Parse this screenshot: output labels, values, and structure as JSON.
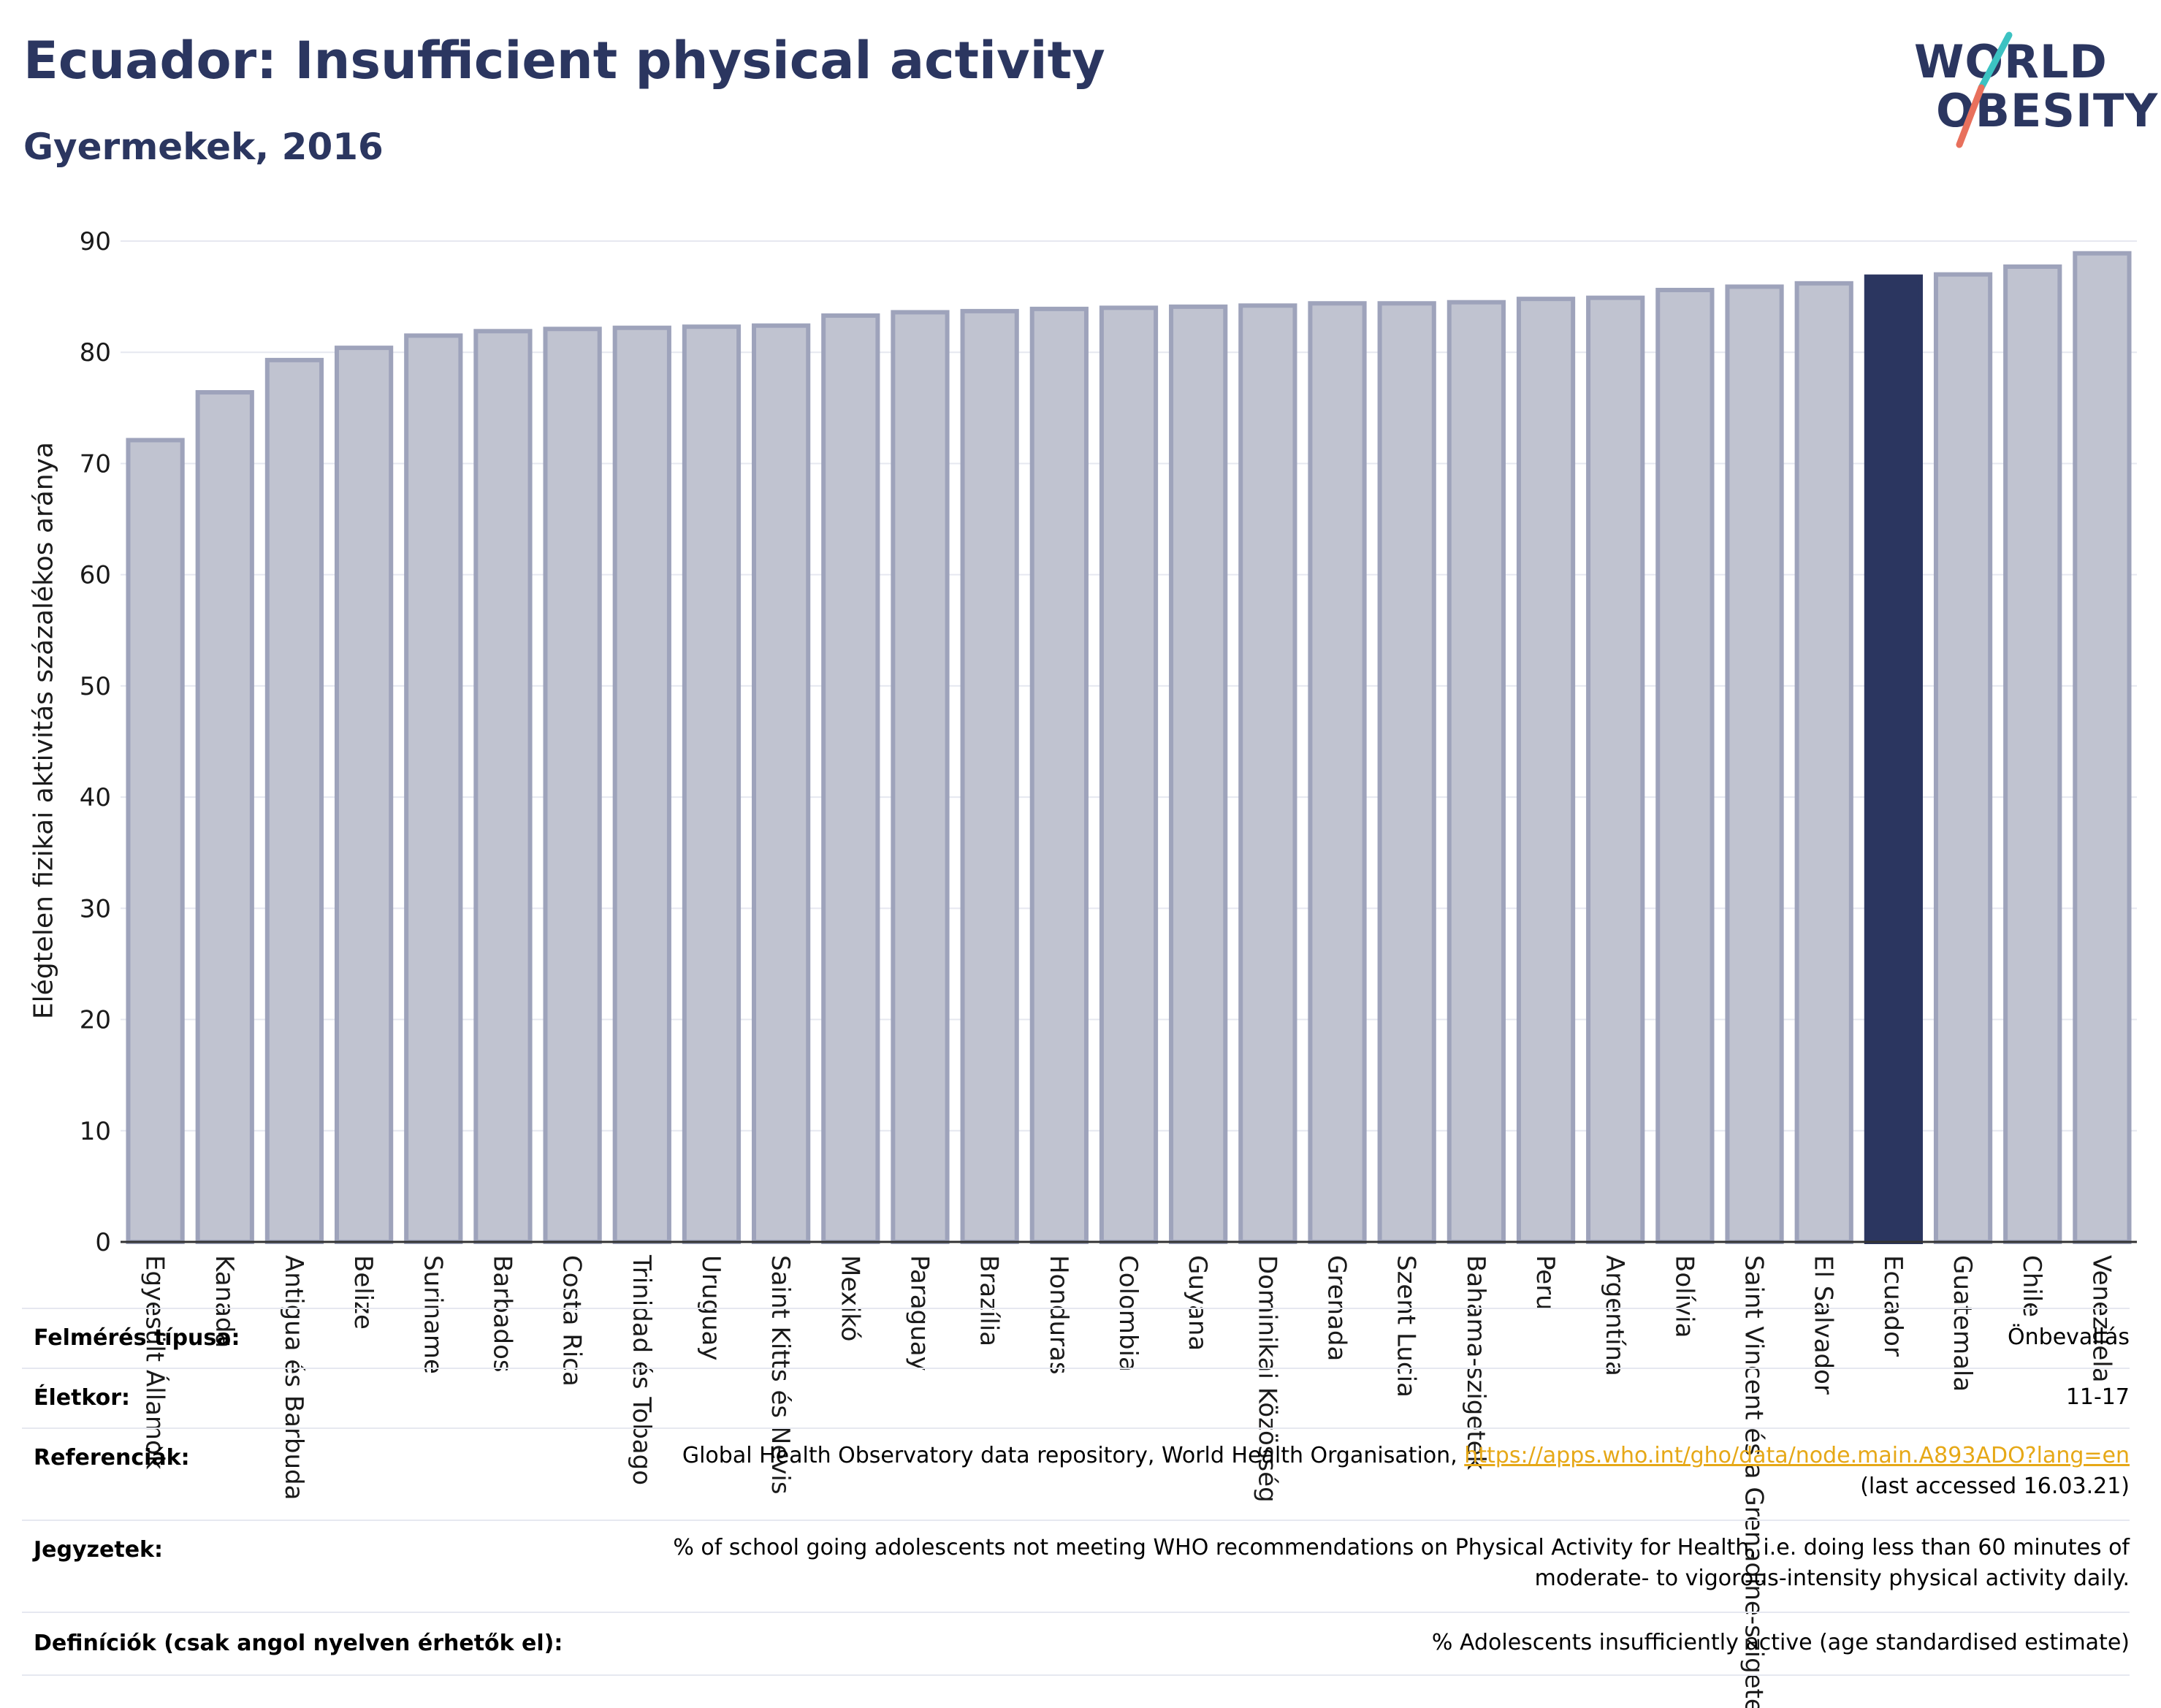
{
  "header": {
    "title": "Ecuador: Insufficient physical activity",
    "subtitle": "Gyermekek, 2016"
  },
  "logo": {
    "line1": "WORLD",
    "line2": "OBESITY",
    "accent_teal": "#3cc2c2",
    "accent_coral": "#e8705c"
  },
  "colors": {
    "bar": "#c0c3d0",
    "bar_edge": "#9ea3bb",
    "highlight": "#2b3660",
    "grid": "#e6e8f0"
  },
  "chart_data": {
    "type": "bar",
    "title": "Ecuador: Insufficient physical activity",
    "subtitle": "Gyermekek, 2016",
    "ylabel": "Elégtelen fizikai aktivitás százalékos aránya",
    "xlabel": "",
    "ylim": [
      0,
      90
    ],
    "yticks": [
      0,
      10,
      20,
      30,
      40,
      50,
      60,
      70,
      80,
      90
    ],
    "grid": true,
    "highlight": "Ecuador",
    "categories": [
      "Egyesült Államok",
      "Kanada",
      "Antigua és Barbuda",
      "Belize",
      "Suriname",
      "Barbados",
      "Costa Rica",
      "Trinidad és Tobago",
      "Uruguay",
      "Saint Kitts és Nevis",
      "Mexikó",
      "Paraguay",
      "Brazília",
      "Honduras",
      "Colombia",
      "Guyana",
      "Dominikai Közösség",
      "Grenada",
      "Szent Lucia",
      "Bahama-szigetek",
      "Peru",
      "Argentína",
      "Bolívia",
      "Saint Vincent és a Grenadine-szigetek",
      "El Salvador",
      "Ecuador",
      "Guatemala",
      "Chile",
      "Venezuela"
    ],
    "values": [
      72.1,
      76.4,
      79.3,
      80.4,
      81.5,
      81.9,
      82.1,
      82.2,
      82.3,
      82.4,
      83.3,
      83.6,
      83.7,
      83.9,
      84.0,
      84.1,
      84.2,
      84.4,
      84.4,
      84.5,
      84.8,
      84.9,
      85.6,
      85.9,
      86.2,
      86.8,
      87.0,
      87.7,
      88.9
    ]
  },
  "meta": [
    {
      "label": "Felmérés típusa:",
      "value": "Önbevallás"
    },
    {
      "label": "Életkor:",
      "value": "11-17"
    },
    {
      "label": "Referenciák:",
      "value_prefix": "Global Health Observatory data repository, World Health Organisation, ",
      "link": "https://apps.who.int/gho/data/node.main.A893ADO?lang=en",
      "value_suffix": "(last accessed 16.03.21)"
    },
    {
      "label": "Jegyzetek:",
      "value_line1": "% of school going adolescents not meeting WHO recommendations on Physical Activity for Health, i.e. doing less than 60 minutes of",
      "value_line2": "moderate- to vigorous-intensity physical activity daily."
    },
    {
      "label": "Definíciók (csak angol nyelven érhetők el):",
      "value": "% Adolescents insufficiently active (age standardised estimate)"
    }
  ]
}
